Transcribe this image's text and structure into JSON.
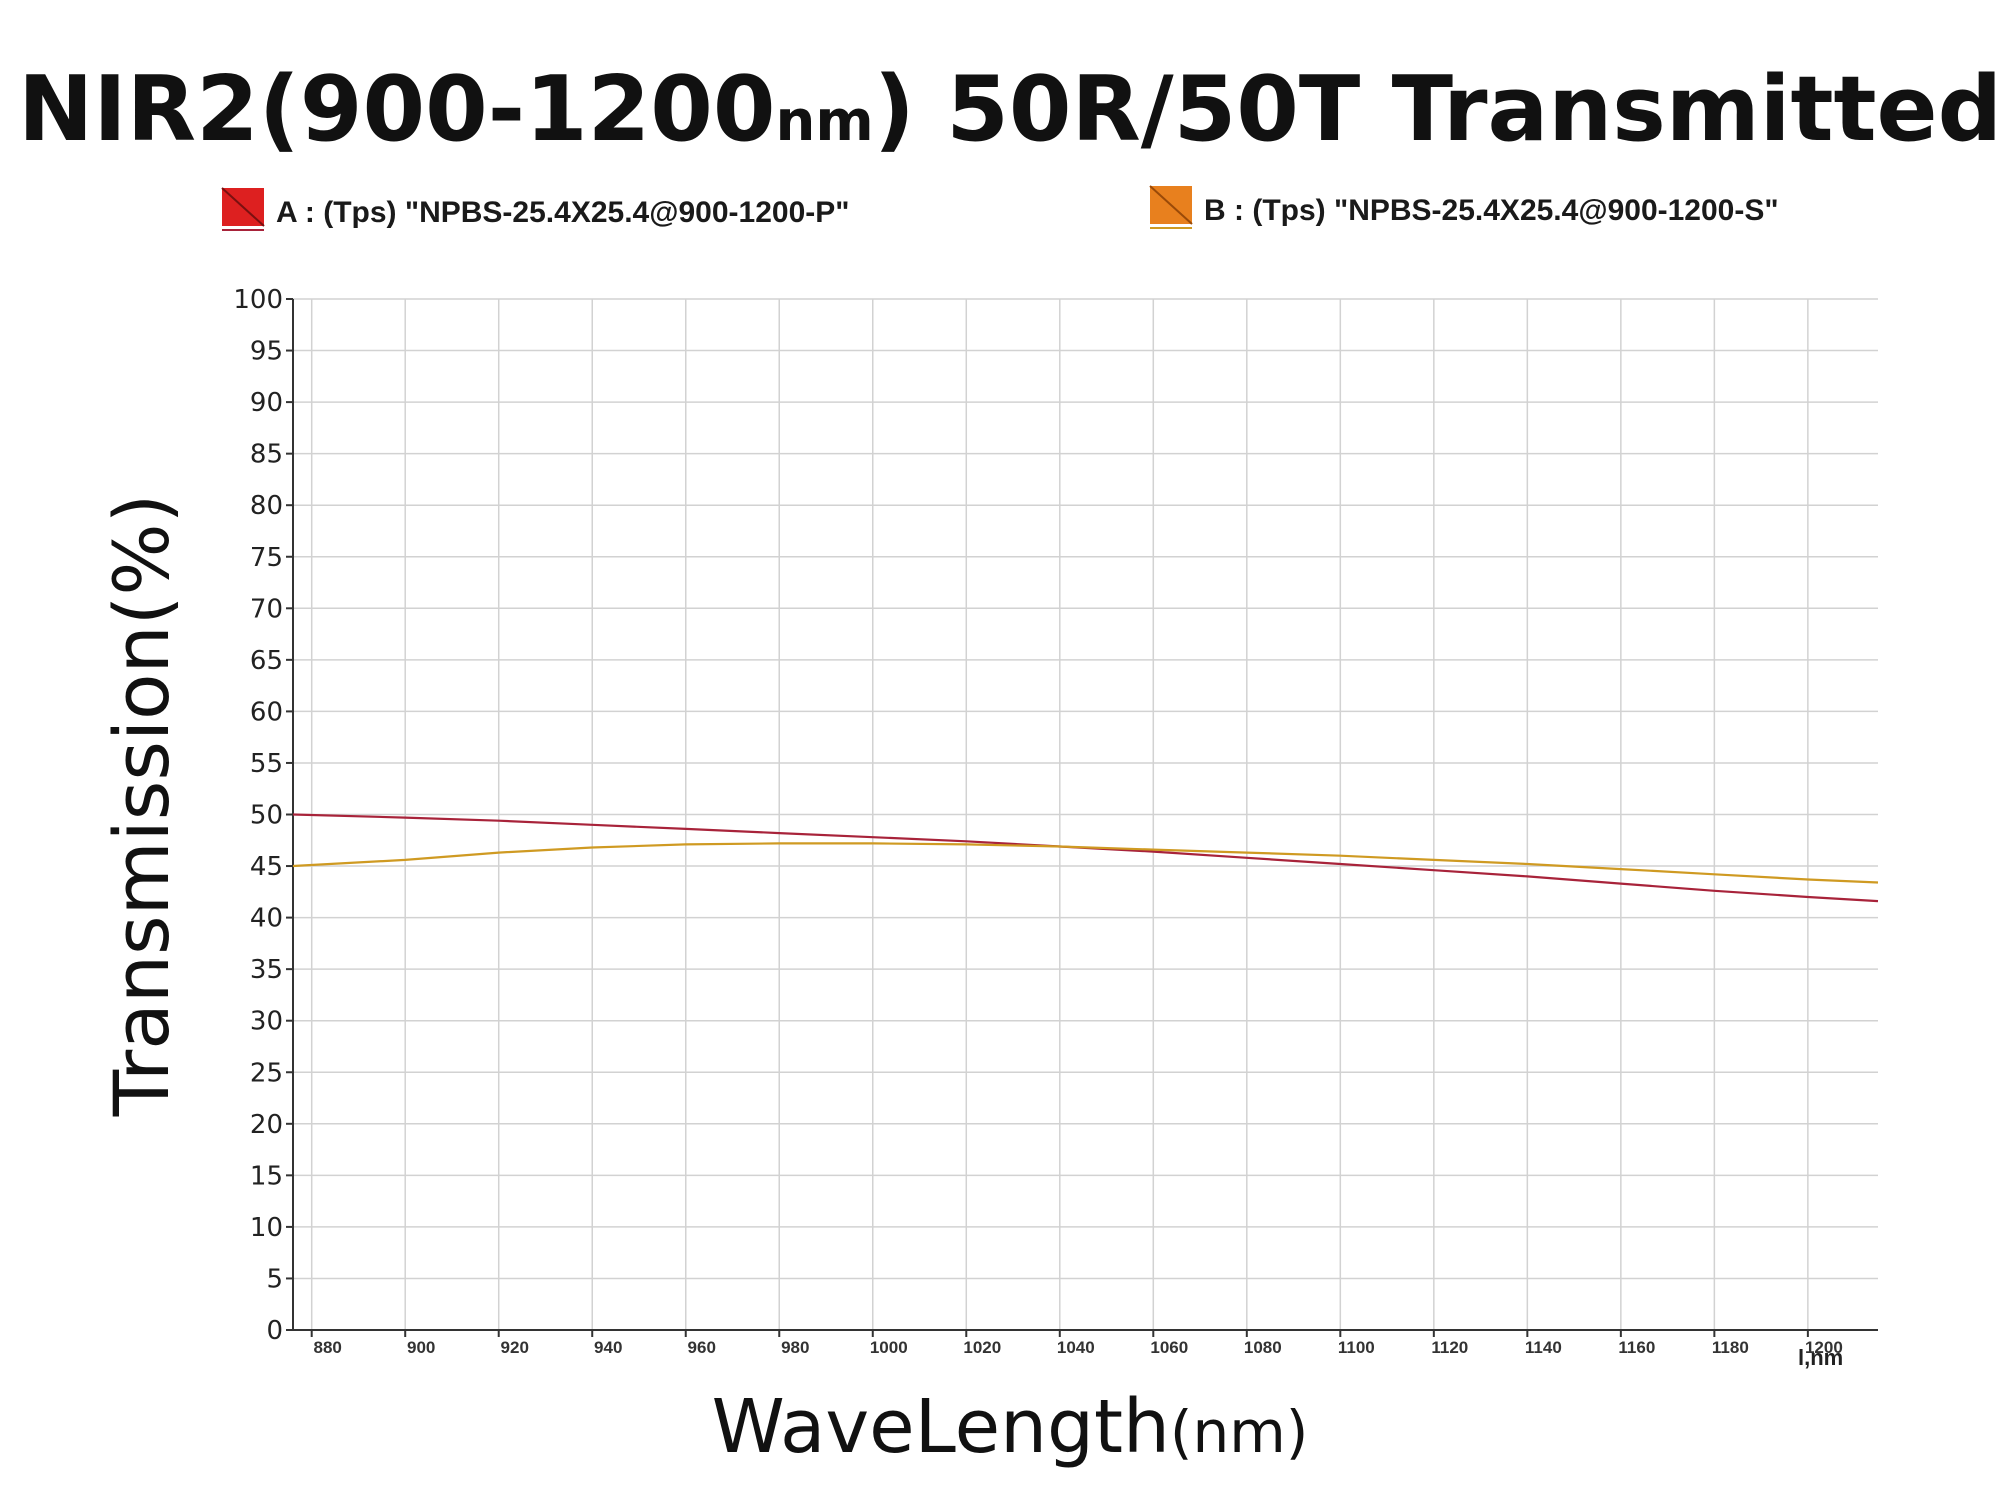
{
  "chart_data": {
    "type": "line",
    "title": "NIR2(900-1200",
    "title_unit": "nm",
    "title_tail": ") 50R/50T Transmitted",
    "xlabel": "WaveLength",
    "xlabel_unit": "(nm)",
    "ylabel": "Transmission(%)",
    "x_axis_corner_label": "l,nm",
    "xlim": [
      876,
      1215
    ],
    "ylim": [
      0,
      100
    ],
    "x_ticks": [
      880,
      900,
      920,
      940,
      960,
      980,
      1000,
      1020,
      1040,
      1060,
      1080,
      1100,
      1120,
      1140,
      1160,
      1180,
      1200
    ],
    "x_tick_labels": [
      "880",
      "900",
      "920",
      "940",
      "960",
      "980",
      "1000",
      "1020",
      "1040",
      "1060",
      "1080",
      "1100",
      "1120",
      "1140",
      "1160",
      "1180",
      "1200"
    ],
    "y_ticks": [
      0,
      5,
      10,
      15,
      20,
      25,
      30,
      35,
      40,
      45,
      50,
      55,
      60,
      65,
      70,
      75,
      80,
      85,
      90,
      95,
      100
    ],
    "y_tick_labels": [
      "0",
      "5",
      "10",
      "15",
      "20",
      "25",
      "30",
      "35",
      "40",
      "45",
      "50",
      "55",
      "60",
      "65",
      "70",
      "75",
      "80",
      "85",
      "90",
      "95",
      "100"
    ],
    "grid": true,
    "legend_position": "top",
    "series": [
      {
        "name": "A : (Tps) \"NPBS-25.4X25.4@900-1200-P\"",
        "color": "#a8233a",
        "swatch_color": "#dd2020",
        "x": [
          876,
          900,
          920,
          940,
          960,
          980,
          1000,
          1020,
          1040,
          1060,
          1080,
          1100,
          1120,
          1140,
          1160,
          1180,
          1200,
          1215
        ],
        "y": [
          50.0,
          49.7,
          49.4,
          49.0,
          48.6,
          48.2,
          47.8,
          47.4,
          46.9,
          46.4,
          45.8,
          45.2,
          44.6,
          44.0,
          43.3,
          42.6,
          42.0,
          41.6
        ]
      },
      {
        "name": "B : (Tps) \"NPBS-25.4X25.4@900-1200-S\"",
        "color": "#cf9a22",
        "swatch_color": "#e8801e",
        "x": [
          876,
          900,
          920,
          940,
          960,
          980,
          1000,
          1020,
          1040,
          1060,
          1080,
          1100,
          1120,
          1140,
          1160,
          1180,
          1200,
          1215
        ],
        "y": [
          45.0,
          45.6,
          46.3,
          46.8,
          47.1,
          47.2,
          47.2,
          47.1,
          46.9,
          46.6,
          46.3,
          46.0,
          45.6,
          45.2,
          44.7,
          44.2,
          43.7,
          43.4
        ]
      }
    ]
  }
}
